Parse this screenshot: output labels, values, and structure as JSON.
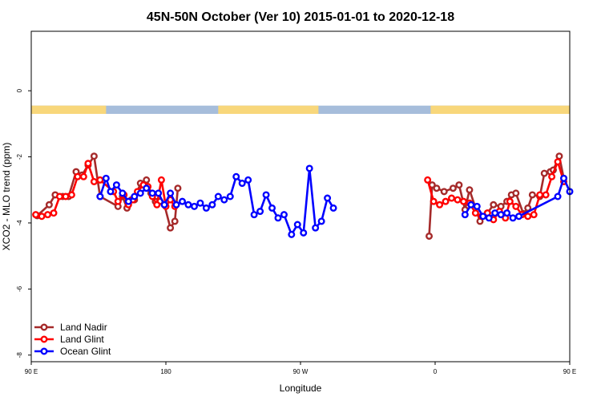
{
  "chart_data": {
    "type": "line",
    "title": "45N-50N October (Ver 10)   2015-01-01 to 2020-12-18",
    "xlabel": "Longitude",
    "ylabel": "XCO2 - MLO trend (ppm)",
    "xlim": [
      90,
      450
    ],
    "ylim": [
      -8.2,
      1.8
    ],
    "x_ticks": [
      {
        "value": 90,
        "label": "90 E"
      },
      {
        "value": 180,
        "label": "180"
      },
      {
        "value": 270,
        "label": "90 W"
      },
      {
        "value": 360,
        "label": "0"
      },
      {
        "value": 450,
        "label": "90 E"
      },
      {
        "value": 540,
        "label": "180"
      }
    ],
    "y_ticks": [
      {
        "value": 0,
        "label": "0"
      },
      {
        "value": -2,
        "label": "-2"
      },
      {
        "value": -4,
        "label": "-4"
      },
      {
        "value": -6,
        "label": "-6"
      },
      {
        "value": -8,
        "label": "-8"
      }
    ],
    "grid": false,
    "legend_position": "bottom-left",
    "land_mask_band": {
      "y_range": [
        -0.45,
        -0.7
      ],
      "land_color": "#f8d77b",
      "ocean_color": "#a6bddb",
      "land_lon_ranges": [
        [
          90,
          140
        ],
        [
          215,
          282
        ],
        [
          357,
          500
        ]
      ]
    },
    "series": [
      {
        "name": "Land Nadir",
        "color": "#a52a2a",
        "points": [
          [
            94,
            -3.78
          ],
          [
            102,
            -3.45
          ],
          [
            106,
            -3.15
          ],
          [
            111,
            -3.2
          ],
          [
            115,
            -3.2
          ],
          [
            120,
            -2.45
          ],
          [
            124,
            -2.55
          ],
          [
            128,
            -2.25
          ],
          [
            132,
            -1.98
          ],
          [
            136,
            -3.2
          ],
          [
            148,
            -3.5
          ],
          [
            151,
            -3.2
          ],
          [
            154,
            -3.55
          ],
          [
            157,
            -3.3
          ],
          [
            159,
            -3.3
          ],
          [
            163,
            -2.8
          ],
          [
            167,
            -2.7
          ],
          [
            170,
            -3.1
          ],
          [
            173,
            -3.35
          ],
          [
            176,
            -3.35
          ],
          [
            179,
            -3.45
          ],
          [
            183,
            -4.15
          ],
          [
            186,
            -3.95
          ],
          [
            188,
            -2.95
          ],
          [
            356,
            -4.4
          ],
          [
            358,
            -2.85
          ],
          [
            361,
            -2.95
          ],
          [
            366,
            -3.05
          ],
          [
            372,
            -2.95
          ],
          [
            376,
            -2.85
          ],
          [
            380,
            -3.6
          ],
          [
            383,
            -3.0
          ],
          [
            390,
            -3.95
          ],
          [
            395,
            -3.7
          ],
          [
            399,
            -3.45
          ],
          [
            404,
            -3.5
          ],
          [
            408,
            -3.35
          ],
          [
            411,
            -3.15
          ],
          [
            414,
            -3.1
          ],
          [
            419,
            -3.72
          ],
          [
            422,
            -3.55
          ],
          [
            425,
            -3.15
          ],
          [
            430,
            -3.2
          ],
          [
            433,
            -2.5
          ],
          [
            437,
            -2.45
          ],
          [
            439,
            -2.4
          ],
          [
            443,
            -1.98
          ],
          [
            446,
            -2.65
          ]
        ]
      },
      {
        "name": "Land Glint",
        "color": "#ff0000",
        "points": [
          [
            93,
            -3.75
          ],
          [
            97,
            -3.8
          ],
          [
            101,
            -3.75
          ],
          [
            105,
            -3.7
          ],
          [
            109,
            -3.2
          ],
          [
            113,
            -3.2
          ],
          [
            117,
            -3.15
          ],
          [
            121,
            -2.6
          ],
          [
            125,
            -2.6
          ],
          [
            128,
            -2.2
          ],
          [
            132,
            -2.75
          ],
          [
            136,
            -2.7
          ],
          [
            145,
            -3.05
          ],
          [
            148,
            -3.35
          ],
          [
            152,
            -3.15
          ],
          [
            155,
            -3.45
          ],
          [
            158,
            -3.3
          ],
          [
            161,
            -3.05
          ],
          [
            165,
            -2.85
          ],
          [
            168,
            -2.9
          ],
          [
            171,
            -3.2
          ],
          [
            174,
            -3.45
          ],
          [
            177,
            -2.7
          ],
          [
            180,
            -3.5
          ],
          [
            183,
            -3.3
          ],
          [
            186,
            -3.5
          ],
          [
            355,
            -2.7
          ],
          [
            359,
            -3.35
          ],
          [
            363,
            -3.45
          ],
          [
            367,
            -3.35
          ],
          [
            371,
            -3.25
          ],
          [
            375,
            -3.3
          ],
          [
            379,
            -3.35
          ],
          [
            383,
            -3.4
          ],
          [
            387,
            -3.7
          ],
          [
            391,
            -3.8
          ],
          [
            395,
            -3.7
          ],
          [
            399,
            -3.9
          ],
          [
            403,
            -3.65
          ],
          [
            407,
            -3.85
          ],
          [
            410,
            -3.35
          ],
          [
            414,
            -3.5
          ],
          [
            418,
            -3.75
          ],
          [
            422,
            -3.8
          ],
          [
            426,
            -3.75
          ],
          [
            430,
            -3.15
          ],
          [
            434,
            -3.15
          ],
          [
            438,
            -2.6
          ],
          [
            442,
            -2.15
          ],
          [
            446,
            -2.75
          ]
        ]
      },
      {
        "name": "Ocean Glint",
        "color": "#0000ff",
        "points": [
          [
            136,
            -3.2
          ],
          [
            140,
            -2.65
          ],
          [
            143,
            -3.05
          ],
          [
            147,
            -2.85
          ],
          [
            151,
            -3.1
          ],
          [
            155,
            -3.35
          ],
          [
            159,
            -3.2
          ],
          [
            163,
            -3.1
          ],
          [
            167,
            -2.95
          ],
          [
            171,
            -3.1
          ],
          [
            175,
            -3.1
          ],
          [
            179,
            -3.45
          ],
          [
            183,
            -3.1
          ],
          [
            187,
            -3.45
          ],
          [
            191,
            -3.35
          ],
          [
            195,
            -3.45
          ],
          [
            199,
            -3.5
          ],
          [
            203,
            -3.4
          ],
          [
            207,
            -3.55
          ],
          [
            211,
            -3.45
          ],
          [
            215,
            -3.2
          ],
          [
            219,
            -3.3
          ],
          [
            223,
            -3.2
          ],
          [
            227,
            -2.6
          ],
          [
            231,
            -2.8
          ],
          [
            235,
            -2.7
          ],
          [
            239,
            -3.75
          ],
          [
            243,
            -3.65
          ],
          [
            247,
            -3.15
          ],
          [
            251,
            -3.55
          ],
          [
            255,
            -3.85
          ],
          [
            259,
            -3.75
          ],
          [
            264,
            -4.35
          ],
          [
            268,
            -4.05
          ],
          [
            272,
            -4.3
          ],
          [
            276,
            -2.35
          ],
          [
            280,
            -4.15
          ],
          [
            284,
            -3.95
          ],
          [
            288,
            -3.25
          ],
          [
            292,
            -3.55
          ],
          [
            380,
            -3.75
          ],
          [
            384,
            -3.45
          ],
          [
            388,
            -3.5
          ],
          [
            392,
            -3.8
          ],
          [
            396,
            -3.85
          ],
          [
            400,
            -3.7
          ],
          [
            404,
            -3.75
          ],
          [
            408,
            -3.7
          ],
          [
            412,
            -3.85
          ],
          [
            416,
            -3.8
          ],
          [
            442,
            -3.2
          ],
          [
            446,
            -2.65
          ],
          [
            450,
            -3.05
          ],
          [
            454,
            -2.85
          ],
          [
            458,
            -3.1
          ],
          [
            462,
            -3.35
          ],
          [
            466,
            -3.2
          ],
          [
            470,
            -3.1
          ],
          [
            474,
            -2.95
          ]
        ]
      }
    ]
  }
}
